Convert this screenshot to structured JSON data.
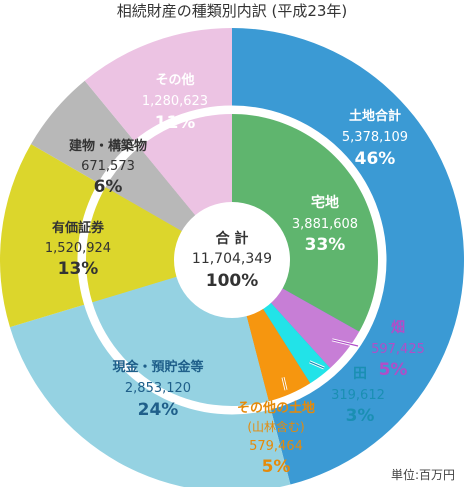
{
  "chart_data": {
    "type": "pie",
    "title": "相続財産の種類別内訳 (平成23年)",
    "unit_note": "単位:百万円",
    "total": {
      "label": "合 計",
      "value": "11,704,349",
      "percent": "100%"
    },
    "outer_ring": [
      {
        "name": "土地合計",
        "value": 5378109,
        "value_text": "5,378,109",
        "pct": 46,
        "pct_text": "46%",
        "color": "#3b9ad4",
        "text_color": "#ffffff"
      },
      {
        "name": "現金・預貯金等",
        "value": 2853120,
        "value_text": "2,853,120",
        "pct": 24,
        "pct_text": "24%",
        "color": "#95d2e2",
        "text_color": "#1f5f8a"
      },
      {
        "name": "有価証券",
        "value": 1520924,
        "value_text": "1,520,924",
        "pct": 13,
        "pct_text": "13%",
        "color": "#dcd62c",
        "text_color": "#333333"
      },
      {
        "name": "建物・構築物",
        "value": 671573,
        "value_text": "671,573",
        "pct": 6,
        "pct_text": "6%",
        "color": "#b8b8b8",
        "text_color": "#333333"
      },
      {
        "name": "その他",
        "value": 1280623,
        "value_text": "1,280,623",
        "pct": 11,
        "pct_text": "11%",
        "color": "#ecc3e3",
        "text_color": "#ffffff"
      }
    ],
    "inner_land": [
      {
        "name": "宅地",
        "value": 3881608,
        "value_text": "3,881,608",
        "pct": 33,
        "pct_text": "33%",
        "color": "#5fb56e",
        "text_color": "#ffffff"
      },
      {
        "name": "畑",
        "value": 597425,
        "value_text": "597,425",
        "pct": 5,
        "pct_text": "5%",
        "color": "#c77ed6",
        "text_color": "#b04ec8"
      },
      {
        "name": "田",
        "value": 319612,
        "value_text": "319,612",
        "pct": 3,
        "pct_text": "3%",
        "color": "#22e3e8",
        "text_color": "#1a8fb3"
      },
      {
        "name": "その他の土地",
        "sub": "(山林含む)",
        "value": 579464,
        "value_text": "579,464",
        "pct": 5,
        "pct_text": "5%",
        "color": "#f6960f",
        "text_color": "#e58a0a"
      }
    ]
  }
}
